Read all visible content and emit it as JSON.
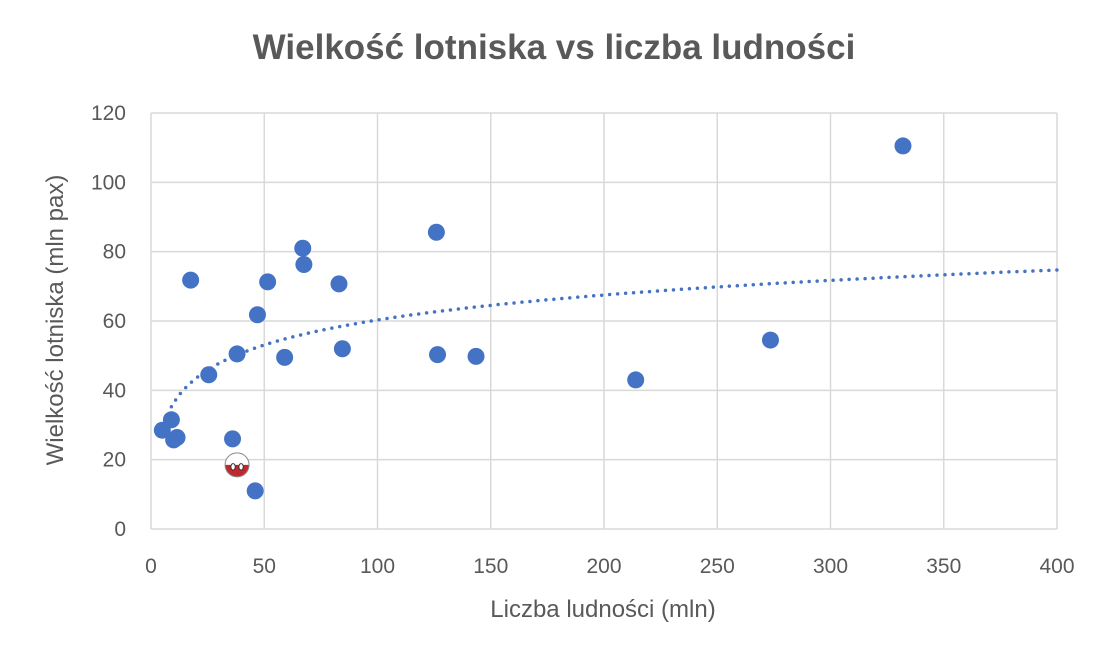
{
  "chart_data": {
    "type": "scatter",
    "title": "Wielkość lotniska vs liczba ludności",
    "xlabel": "Liczba ludności (mln)",
    "ylabel": "Wielkość lotniska (mln pax)",
    "xlim": [
      0,
      400
    ],
    "ylim": [
      0,
      120
    ],
    "xticks": [
      0,
      50,
      100,
      150,
      200,
      250,
      300,
      350,
      400
    ],
    "yticks": [
      0,
      20,
      40,
      60,
      80,
      100,
      120
    ],
    "grid": true,
    "legend": "none",
    "point_color": "#4472C4",
    "highlight_color": "#C0282D",
    "trendline": {
      "type": "logarithmic",
      "style": "dotted",
      "color": "#4472C4",
      "a": 10.4,
      "b": 12.4,
      "x_from": 9,
      "x_to": 400
    },
    "points": [
      {
        "x": 5,
        "y": 28.5
      },
      {
        "x": 9,
        "y": 31.5
      },
      {
        "x": 10,
        "y": 25.7
      },
      {
        "x": 11.5,
        "y": 26.4
      },
      {
        "x": 17.5,
        "y": 71.8
      },
      {
        "x": 25.5,
        "y": 44.5
      },
      {
        "x": 36,
        "y": 26
      },
      {
        "x": 38,
        "y": 50.5
      },
      {
        "x": 46,
        "y": 11
      },
      {
        "x": 47,
        "y": 61.8
      },
      {
        "x": 51.5,
        "y": 71.3
      },
      {
        "x": 59,
        "y": 49.5
      },
      {
        "x": 67,
        "y": 81
      },
      {
        "x": 67.5,
        "y": 76.3
      },
      {
        "x": 83,
        "y": 70.7
      },
      {
        "x": 84.5,
        "y": 52
      },
      {
        "x": 126,
        "y": 85.6
      },
      {
        "x": 126.5,
        "y": 50.3
      },
      {
        "x": 143.5,
        "y": 49.8
      },
      {
        "x": 214,
        "y": 43
      },
      {
        "x": 273.5,
        "y": 54.5
      },
      {
        "x": 332,
        "y": 110.5
      }
    ],
    "highlight_point": {
      "x": 38,
      "y": 18.5,
      "icon": "poland-flag-ball-icon"
    }
  }
}
